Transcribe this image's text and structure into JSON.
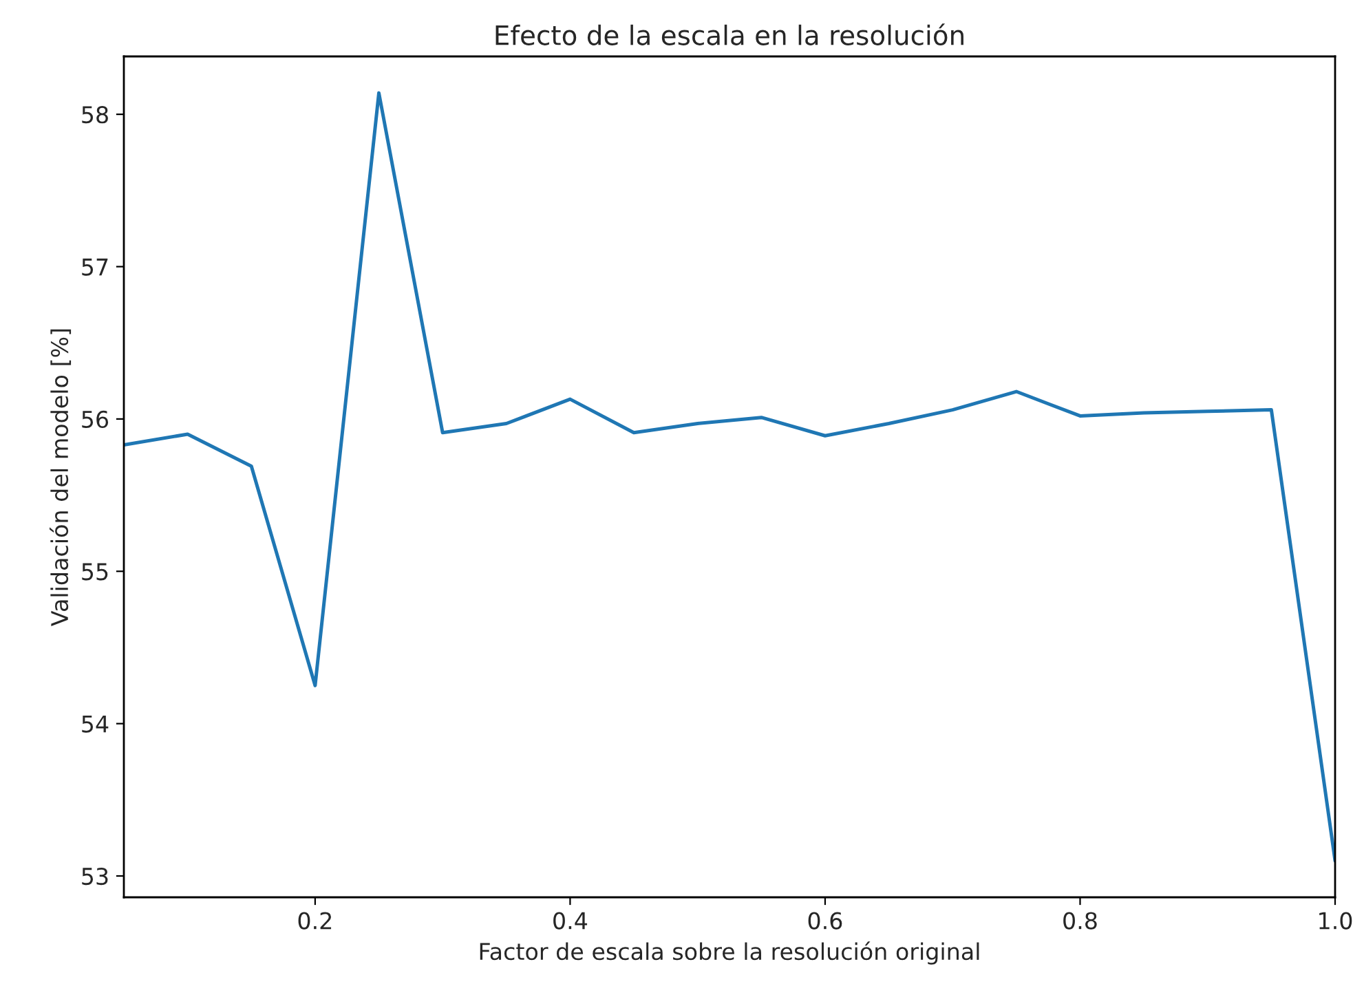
{
  "chart_data": {
    "type": "line",
    "title": "Efecto de la escala en la resolución",
    "xlabel": "Factor de escala sobre la resolución original",
    "ylabel": "Validación del modelo [%]",
    "x": [
      0.05,
      0.1,
      0.15,
      0.2,
      0.25,
      0.3,
      0.35,
      0.4,
      0.45,
      0.5,
      0.55,
      0.6,
      0.65,
      0.7,
      0.75,
      0.8,
      0.85,
      0.9,
      0.95,
      1.0
    ],
    "series": [
      {
        "color": "#1f77b4",
        "values": [
          55.83,
          55.9,
          55.69,
          54.25,
          58.14,
          55.91,
          55.97,
          56.13,
          55.91,
          55.97,
          56.01,
          55.89,
          55.97,
          56.06,
          56.18,
          56.02,
          56.04,
          56.05,
          56.06,
          53.1
        ]
      }
    ],
    "xlim": [
      0.05,
      1.0
    ],
    "ylim": [
      52.86,
      58.38
    ],
    "xticks": [
      {
        "value": 0.2,
        "label": "0.2"
      },
      {
        "value": 0.4,
        "label": "0.4"
      },
      {
        "value": 0.6,
        "label": "0.6"
      },
      {
        "value": 0.8,
        "label": "0.8"
      },
      {
        "value": 1.0,
        "label": "1.0"
      }
    ],
    "yticks": [
      53,
      54,
      55,
      56,
      57,
      58
    ],
    "grid": false,
    "legend": false
  }
}
